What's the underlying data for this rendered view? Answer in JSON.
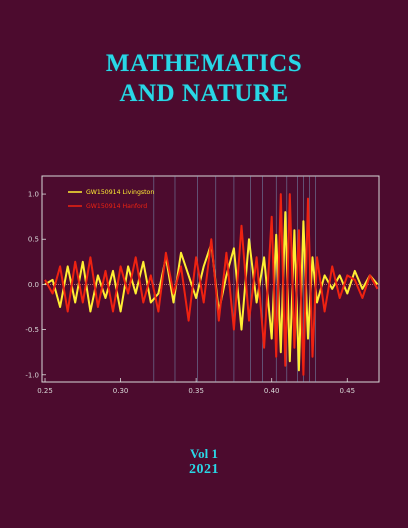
{
  "cover": {
    "title_line1": "MATHEMATICS",
    "title_line2": "AND NATURE",
    "volume": "Vol 1",
    "year": "2021",
    "colors": {
      "background": "#4c0b2e",
      "title": "#2ad7e6"
    }
  },
  "chart_data": {
    "type": "line",
    "xlim": [
      0.248,
      0.471
    ],
    "ylim": [
      -1.08,
      1.2
    ],
    "x_ticks": [
      "0.25",
      "0.30",
      "0.35",
      "0.40",
      "0.45"
    ],
    "x_tick_values": [
      0.25,
      0.3,
      0.35,
      0.4,
      0.45
    ],
    "y_ticks": [
      "1.0",
      "0.5",
      "0.0",
      "-0.5",
      "-1.0"
    ],
    "y_tick_values": [
      1.0,
      0.5,
      0.0,
      -0.5,
      -1.0
    ],
    "grid": false,
    "legend_placement": "top-left",
    "reference_lines_x": [
      0.322,
      0.336,
      0.351,
      0.363,
      0.375,
      0.386,
      0.394,
      0.403,
      0.41,
      0.417,
      0.421,
      0.425,
      0.429
    ],
    "series": [
      {
        "name": "GW150914 Livingston",
        "color": "#ffee33",
        "x": [
          0.25,
          0.255,
          0.26,
          0.265,
          0.27,
          0.275,
          0.28,
          0.285,
          0.29,
          0.295,
          0.3,
          0.305,
          0.31,
          0.315,
          0.32,
          0.325,
          0.33,
          0.335,
          0.34,
          0.345,
          0.35,
          0.355,
          0.36,
          0.365,
          0.37,
          0.375,
          0.38,
          0.385,
          0.39,
          0.395,
          0.4,
          0.403,
          0.406,
          0.409,
          0.412,
          0.415,
          0.418,
          0.421,
          0.424,
          0.427,
          0.43,
          0.435,
          0.44,
          0.445,
          0.45,
          0.455,
          0.46,
          0.465,
          0.47
        ],
        "y": [
          0.0,
          0.05,
          -0.25,
          0.2,
          -0.2,
          0.25,
          -0.3,
          0.1,
          -0.15,
          0.15,
          -0.3,
          0.2,
          -0.1,
          0.25,
          -0.2,
          -0.1,
          0.3,
          -0.2,
          0.35,
          0.1,
          -0.15,
          0.2,
          0.45,
          -0.3,
          0.1,
          0.4,
          -0.5,
          0.5,
          -0.2,
          0.3,
          -0.6,
          0.55,
          -0.75,
          0.8,
          -0.85,
          0.6,
          -0.95,
          0.7,
          -0.6,
          0.3,
          -0.2,
          0.1,
          -0.05,
          0.1,
          -0.1,
          0.15,
          -0.05,
          0.1,
          0.0
        ]
      },
      {
        "name": "GW150914 Hanford",
        "color": "#ee2211",
        "x": [
          0.25,
          0.255,
          0.26,
          0.265,
          0.27,
          0.275,
          0.28,
          0.285,
          0.29,
          0.295,
          0.3,
          0.305,
          0.31,
          0.315,
          0.32,
          0.325,
          0.33,
          0.335,
          0.34,
          0.345,
          0.35,
          0.355,
          0.36,
          0.365,
          0.37,
          0.375,
          0.38,
          0.385,
          0.39,
          0.395,
          0.4,
          0.403,
          0.406,
          0.409,
          0.412,
          0.415,
          0.418,
          0.421,
          0.424,
          0.427,
          0.43,
          0.435,
          0.44,
          0.445,
          0.45,
          0.455,
          0.46,
          0.465,
          0.47
        ],
        "y": [
          0.05,
          -0.1,
          0.2,
          -0.3,
          0.25,
          -0.2,
          0.3,
          -0.25,
          0.15,
          -0.3,
          0.2,
          -0.1,
          0.3,
          -0.2,
          0.1,
          -0.3,
          0.35,
          -0.1,
          0.2,
          -0.4,
          0.3,
          -0.2,
          0.5,
          -0.4,
          0.35,
          -0.5,
          0.65,
          -0.4,
          0.3,
          -0.7,
          0.75,
          -0.8,
          1.0,
          -0.9,
          1.0,
          -0.7,
          0.6,
          -1.0,
          0.95,
          -0.8,
          0.3,
          -0.3,
          0.2,
          -0.15,
          0.1,
          0.05,
          -0.15,
          0.1,
          -0.05
        ]
      }
    ]
  }
}
